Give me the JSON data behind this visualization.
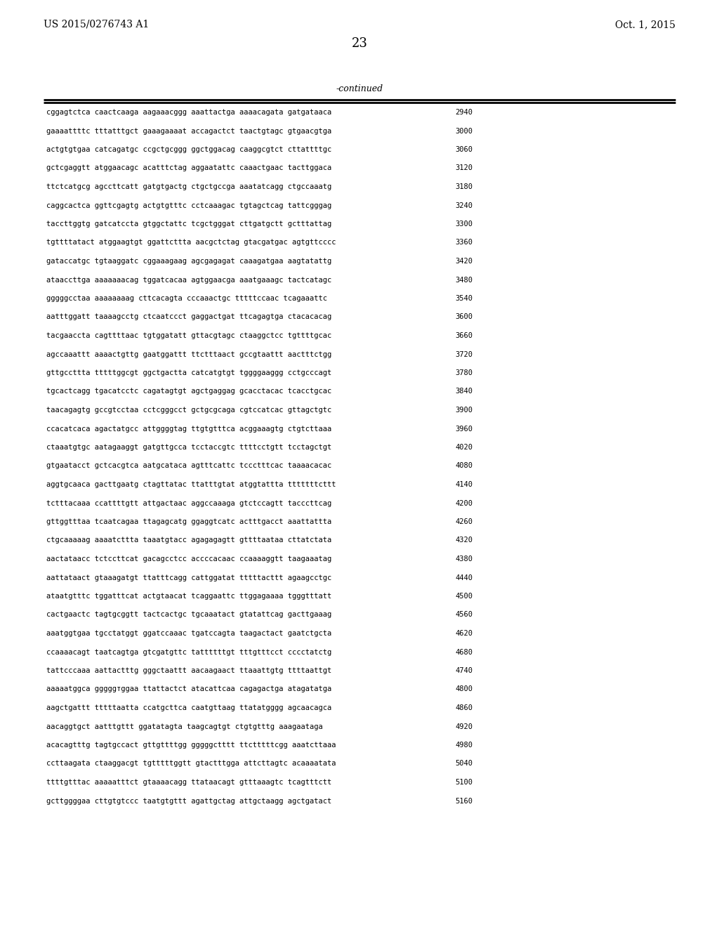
{
  "header_left": "US 2015/0276743 A1",
  "header_right": "Oct. 1, 2015",
  "page_number": "23",
  "continued_label": "-continued",
  "background_color": "#ffffff",
  "text_color": "#000000",
  "font_size": 7.5,
  "header_font_size": 10,
  "page_num_font_size": 13,
  "continued_font_size": 9,
  "sequence_lines": [
    {
      "seq": "cggagtctca caactcaaga aagaaacggg aaattactga aaaacagata gatgataaca",
      "num": "2940"
    },
    {
      "seq": "gaaaattttc tttatttgct gaaagaaaat accagactct taactgtagc gtgaacgtga",
      "num": "3000"
    },
    {
      "seq": "actgtgtgaa catcagatgc ccgctgcggg ggctggacag caaggcgtct cttattttgc",
      "num": "3060"
    },
    {
      "seq": "gctcgaggtt atggaacagc acatttctag aggaatattc caaactgaac tacttggaca",
      "num": "3120"
    },
    {
      "seq": "ttctcatgcg agccttcatt gatgtgactg ctgctgccga aaatatcagg ctgccaaatg",
      "num": "3180"
    },
    {
      "seq": "caggcactca ggttcgagtg actgtgtttc cctcaaagac tgtagctcag tattcgggag",
      "num": "3240"
    },
    {
      "seq": "taccttggtg gatcatccta gtggctattc tcgctgggat cttgatgctt gctttattag",
      "num": "3300"
    },
    {
      "seq": "tgttttatact atggaagtgt ggattcttta aacgctctag gtacgatgac agtgttcccc",
      "num": "3360"
    },
    {
      "seq": "gataccatgc tgtaaggatc cggaaagaag agcgagagat caaagatgaa aagtatattg",
      "num": "3420"
    },
    {
      "seq": "ataaccttga aaaaaaacag tggatcacaa agtggaacga aaatgaaagc tactcatagc",
      "num": "3480"
    },
    {
      "seq": "gggggcctaa aaaaaaaag cttcacagta cccaaactgc tttttccaac tcagaaattc",
      "num": "3540"
    },
    {
      "seq": "aatttggatt taaaagcctg ctcaatccct gaggactgat ttcagagtga ctacacacag",
      "num": "3600"
    },
    {
      "seq": "tacgaaccta cagttttaac tgtggatatt gttacgtagc ctaaggctcc tgttttgcac",
      "num": "3660"
    },
    {
      "seq": "agccaaattt aaaactgttg gaatggattt ttctttaact gccgtaattt aactttctgg",
      "num": "3720"
    },
    {
      "seq": "gttgccttta tttttggcgt ggctgactta catcatgtgt tggggaaggg cctgcccagt",
      "num": "3780"
    },
    {
      "seq": "tgcactcagg tgacatcctc cagatagtgt agctgaggag gcacctacac tcacctgcac",
      "num": "3840"
    },
    {
      "seq": "taacagagtg gccgtcctaa cctcgggcct gctgcgcaga cgtccatcac gttagctgtc",
      "num": "3900"
    },
    {
      "seq": "ccacatcaca agactatgcc attggggtag ttgtgtttca acggaaagtg ctgtcttaaa",
      "num": "3960"
    },
    {
      "seq": "ctaaatgtgc aatagaaggt gatgttgcca tcctaccgtc ttttcctgtt tcctagctgt",
      "num": "4020"
    },
    {
      "seq": "gtgaatacct gctcacgtca aatgcataca agtttcattc tccctttcac taaaacacac",
      "num": "4080"
    },
    {
      "seq": "aggtgcaaca gacttgaatg ctagttatac ttatttgtat atggtattta tttttttcttt",
      "num": "4140"
    },
    {
      "seq": "tctttacaaa ccattttgtt attgactaac aggccaaaga gtctccagtt tacccttcag",
      "num": "4200"
    },
    {
      "seq": "gttggtttaa tcaatcagaa ttagagcatg ggaggtcatc actttgacct aaattattta",
      "num": "4260"
    },
    {
      "seq": "ctgcaaaaag aaaatcttta taaatgtacc agagagagtt gttttaataa cttatctata",
      "num": "4320"
    },
    {
      "seq": "aactataacc tctccttcat gacagcctcc accccacaac ccaaaaggtt taagaaatag",
      "num": "4380"
    },
    {
      "seq": "aattataact gtaaagatgt ttatttcagg cattggatat tttttacttt agaagcctgc",
      "num": "4440"
    },
    {
      "seq": "ataatgtttc tggatttcat actgtaacat tcaggaattc ttggagaaaa tgggtttatt",
      "num": "4500"
    },
    {
      "seq": "cactgaactc tagtgcggtt tactcactgc tgcaaatact gtatattcag gacttgaaag",
      "num": "4560"
    },
    {
      "seq": "aaatggtgaa tgcctatggt ggatccaaac tgatccagta taagactact gaatctgcta",
      "num": "4620"
    },
    {
      "seq": "ccaaaacagt taatcagtga gtcgatgttc tattttttgt tttgtttcct cccctatctg",
      "num": "4680"
    },
    {
      "seq": "tattcccaaa aattactttg gggctaattt aacaagaact ttaaattgtg ttttaattgt",
      "num": "4740"
    },
    {
      "seq": "aaaaatggca gggggтggaa ttattactct atacattcaa cagagactga atagatatga",
      "num": "4800"
    },
    {
      "seq": "aagctgattt tttttaatta ccatgcttca caatgttaag ttatatgggg agcaacagca",
      "num": "4860"
    },
    {
      "seq": "aacaggtgct aatttgttt ggatatagta taagcagtgt ctgtgtttg aaagaataga",
      "num": "4920"
    },
    {
      "seq": "acacagtttg tagtgccact gttgttttgg gggggctttt ttctttttcgg aaatcttaaa",
      "num": "4980"
    },
    {
      "seq": "ccttaagata ctaaggacgt tgtttttggtt gtactttgga attcttagtc acaaaatata",
      "num": "5040"
    },
    {
      "seq": "ttttgtttac aaaaatttct gtaaaacagg ttataacagt gtttaaagtc tcagtttctt",
      "num": "5100"
    },
    {
      "seq": "gcttggggaa cttgtgtccc taatgtgttt agattgctag attgctaagg agctgatact",
      "num": "5160"
    }
  ]
}
